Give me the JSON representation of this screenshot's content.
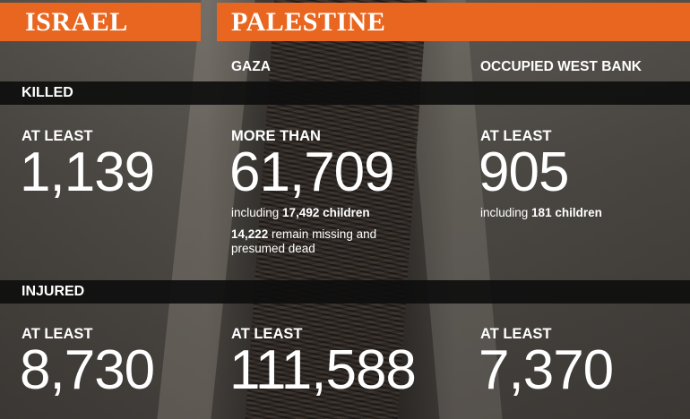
{
  "headers": {
    "israel": "ISRAEL",
    "palestine": "PALESTINE"
  },
  "regions": {
    "gaza": "GAZA",
    "west_bank": "OCCUPIED WEST BANK"
  },
  "killed": {
    "section_label": "KILLED",
    "israel": {
      "qualifier": "AT LEAST",
      "value": "1,139"
    },
    "gaza": {
      "qualifier": "MORE THAN",
      "value": "61,709",
      "children_prefix": "including ",
      "children_count": "17,492 children",
      "missing_count": "14,222",
      "missing_text": " remain missing and",
      "missing_text2": "presumed dead"
    },
    "west_bank": {
      "qualifier": "AT LEAST",
      "value": "905",
      "children_prefix": "including ",
      "children_count": "181 children"
    }
  },
  "injured": {
    "section_label": "INJURED",
    "israel": {
      "qualifier": "AT LEAST",
      "value": "8,730"
    },
    "gaza": {
      "qualifier": "AT LEAST",
      "value": "111,588"
    },
    "west_bank": {
      "qualifier": "AT LEAST",
      "value": "7,370"
    }
  },
  "colors": {
    "accent": "#e8661f",
    "band": "#0e0e0e",
    "text": "#ffffff"
  }
}
